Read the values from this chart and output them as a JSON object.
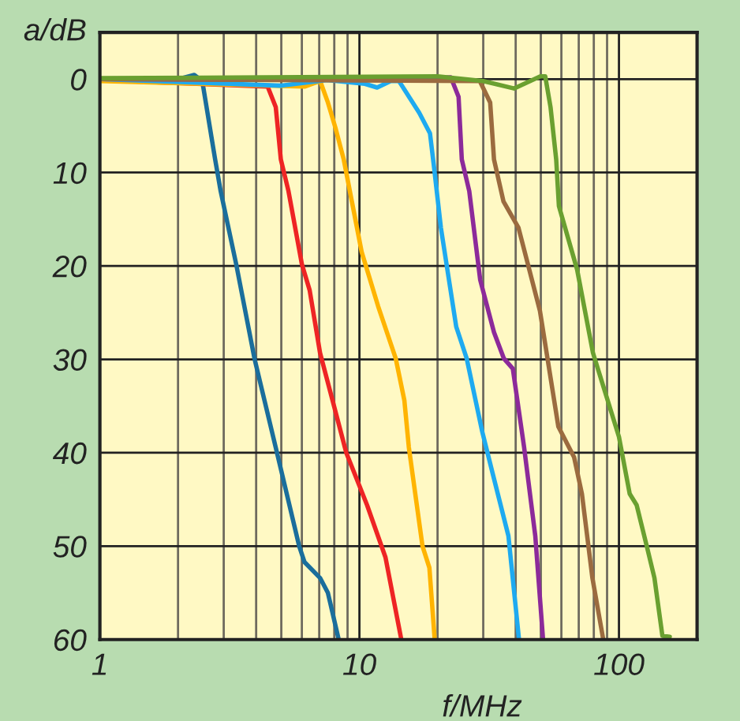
{
  "chart_data": {
    "type": "line",
    "xlabel": "f/MHz",
    "ylabel": "a/dB",
    "log": "x",
    "grid": true,
    "marker": "none",
    "line_style": "solid",
    "xlim": [
      1,
      200
    ],
    "xticks": [
      1,
      10,
      100
    ],
    "ylim": [
      60,
      -5
    ],
    "yticks": [
      0,
      10,
      20,
      30,
      40,
      50,
      60
    ],
    "series": [
      {
        "color": "#1a6e9c",
        "x": [
          1,
          2.0,
          2.31,
          2.48,
          2.78,
          2.92,
          3.35,
          3.94,
          4.86,
          5.86,
          6.14,
          7.05,
          7.56,
          8.32
        ],
        "values": [
          0,
          0,
          -0.45,
          0.2,
          8.6,
          12,
          19.8,
          29.9,
          40.5,
          50,
          51.7,
          53.4,
          55,
          60
        ]
      },
      {
        "color": "#ee2424",
        "x": [
          1,
          4.43,
          4.76,
          4.98,
          5.33,
          6.0,
          6.43,
          7.05,
          8.9,
          10.7,
          12.6,
          14.5
        ],
        "values": [
          0.1,
          0.8,
          3,
          8.6,
          12,
          19.8,
          22.6,
          29.3,
          40,
          45.6,
          51.2,
          60
        ]
      },
      {
        "color": "#ffb400",
        "x": [
          1,
          6.14,
          7.06,
          7.56,
          8.1,
          8.7,
          10.2,
          11.8,
          13.8,
          14.9,
          15.5,
          17.5,
          18.6,
          19.5
        ],
        "values": [
          0.2,
          0.8,
          0.2,
          2.5,
          5.3,
          8.6,
          18.5,
          24.3,
          29.9,
          34.4,
          39.4,
          50,
          52.3,
          60
        ]
      },
      {
        "color": "#1eaaf0",
        "x": [
          1,
          2.5,
          5.0,
          7.5,
          10.5,
          11.7,
          13.2,
          14.2,
          17.0,
          18.7,
          19.4,
          20.6,
          23.6,
          25.9,
          29.7,
          32.6,
          37.5,
          41.2
        ],
        "values": [
          0,
          0.4,
          0.7,
          0.1,
          0.5,
          0.9,
          0.2,
          0.2,
          3.6,
          5.8,
          9.5,
          15.9,
          26.5,
          29.9,
          37.7,
          42.2,
          48.9,
          60
        ]
      },
      {
        "color": "#8c2a9a",
        "x": [
          1,
          12,
          22.5,
          24.1,
          24.8,
          26.5,
          29.2,
          33.0,
          36.0,
          39.0,
          43.1,
          47.6,
          51.0
        ],
        "values": [
          0,
          0.1,
          -0.2,
          1.9,
          8.6,
          12,
          21.5,
          27.1,
          29.9,
          31,
          39.4,
          48.9,
          60
        ]
      },
      {
        "color": "#9b6b3f",
        "x": [
          1,
          29.1,
          31.9,
          33.0,
          35.9,
          41.0,
          49.6,
          58.4,
          67.2,
          72.0,
          79.0,
          87.0
        ],
        "values": [
          0,
          0.2,
          2.5,
          8.6,
          13.1,
          15.9,
          24.8,
          37.2,
          40.5,
          44.4,
          53.4,
          60
        ]
      },
      {
        "color": "#6aa030",
        "x": [
          1,
          20,
          30,
          39.4,
          49.8,
          52,
          54.5,
          57.3,
          58.7,
          69.0,
          79.4,
          100,
          110,
          117,
          128,
          137,
          147,
          157
        ],
        "values": [
          -0.1,
          -0.3,
          0.2,
          1.0,
          -0.3,
          -0.3,
          3.0,
          8.6,
          13.6,
          20.4,
          29.3,
          38.3,
          44.4,
          45.6,
          50,
          53.4,
          59.6,
          59.7
        ]
      }
    ]
  }
}
